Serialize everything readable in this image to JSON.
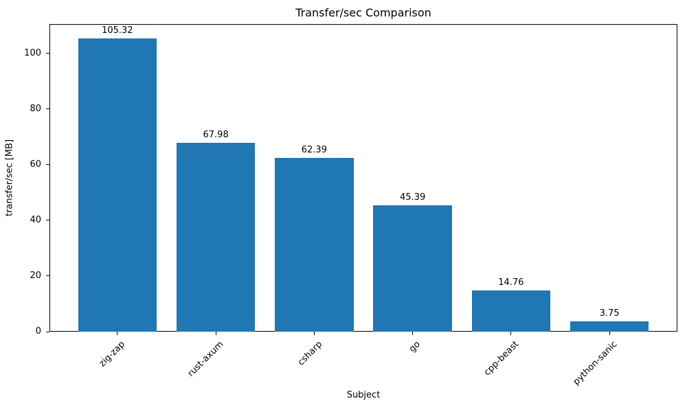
{
  "chart_data": {
    "type": "bar",
    "title": "Transfer/sec Comparison",
    "xlabel": "Subject",
    "ylabel": "transfer/sec [MB]",
    "categories": [
      "zig-zap",
      "rust-axum",
      "csharp",
      "go",
      "cpp-beast",
      "python-sanic"
    ],
    "values": [
      105.32,
      67.98,
      62.39,
      45.39,
      14.76,
      3.75
    ],
    "value_labels": [
      "105.32",
      "67.98",
      "62.39",
      "45.39",
      "14.76",
      "3.75"
    ],
    "yticks": [
      0,
      20,
      40,
      60,
      80,
      100
    ],
    "ylim": [
      0,
      110.6
    ],
    "bar_color": "#1f77b4",
    "bar_width_fraction": 0.8,
    "grid": false,
    "legend": null,
    "x_tick_rotation_deg": 45
  }
}
